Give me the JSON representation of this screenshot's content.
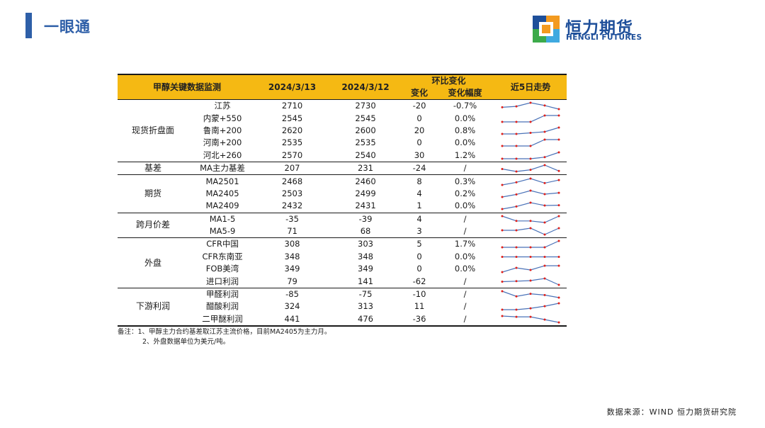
{
  "header": {
    "title": "一眼通"
  },
  "logo": {
    "name_cn": "恒力期货",
    "name_en": "HENGLI FUTURES",
    "colors": {
      "blue": "#1e4f9a",
      "orange": "#f39a1f",
      "green": "#3caa4a",
      "lightblue": "#3fa9e0"
    }
  },
  "table": {
    "columns": {
      "item": "甲醇关键数据监测",
      "date1": "2024/3/13",
      "date2": "2024/3/12",
      "change_group": "环比变化",
      "change": "变化",
      "change_pct": "变化幅度",
      "trend": "近5日走势"
    },
    "header_color": "#f5b913",
    "sparkline_color": "#4a72b8",
    "marker_color": "#e0211c",
    "groups": [
      {
        "category": "现货折盘面",
        "rows": [
          {
            "name": "江苏",
            "v1": "2710",
            "v2": "2730",
            "chg": "-20",
            "pct": "-0.7%",
            "trend": [
              2720,
              2725,
              2745,
              2730,
              2710
            ]
          },
          {
            "name": "内蒙+550",
            "v1": "2545",
            "v2": "2545",
            "chg": "0",
            "pct": "0.0%",
            "trend": [
              2535,
              2535,
              2535,
              2545,
              2545
            ]
          },
          {
            "name": "鲁南+200",
            "v1": "2620",
            "v2": "2600",
            "chg": "20",
            "pct": "0.8%",
            "trend": [
              2590,
              2590,
              2595,
              2600,
              2620
            ]
          },
          {
            "name": "河南+200",
            "v1": "2535",
            "v2": "2535",
            "chg": "0",
            "pct": "0.0%",
            "trend": [
              2530,
              2530,
              2530,
              2535,
              2535
            ]
          },
          {
            "name": "河北+260",
            "v1": "2570",
            "v2": "2540",
            "chg": "30",
            "pct": "1.2%",
            "trend": [
              2530,
              2530,
              2530,
              2540,
              2570
            ]
          }
        ]
      },
      {
        "category": "基差",
        "rows": [
          {
            "name": "MA主力基差",
            "v1": "207",
            "v2": "231",
            "chg": "-24",
            "pct": "/",
            "trend": [
              215,
              205,
              212,
              231,
              207
            ]
          }
        ]
      },
      {
        "category": "期货",
        "rows": [
          {
            "name": "MA2501",
            "v1": "2468",
            "v2": "2460",
            "chg": "8",
            "pct": "0.3%",
            "trend": [
              2455,
              2462,
              2472,
              2460,
              2468
            ]
          },
          {
            "name": "MA2405",
            "v1": "2503",
            "v2": "2499",
            "chg": "4",
            "pct": "0.2%",
            "trend": [
              2490,
              2498,
              2510,
              2499,
              2503
            ]
          },
          {
            "name": "MA2409",
            "v1": "2432",
            "v2": "2431",
            "chg": "1",
            "pct": "0.0%",
            "trend": [
              2420,
              2428,
              2440,
              2431,
              2432
            ]
          }
        ]
      },
      {
        "category": "跨月价差",
        "rows": [
          {
            "name": "MA1-5",
            "v1": "-35",
            "v2": "-39",
            "chg": "4",
            "pct": "/",
            "trend": [
              -35,
              -38,
              -38,
              -39,
              -35
            ]
          },
          {
            "name": "MA5-9",
            "v1": "71",
            "v2": "68",
            "chg": "3",
            "pct": "/",
            "trend": [
              70,
              70,
              71,
              68,
              71
            ]
          }
        ]
      },
      {
        "category": "外盘",
        "rows": [
          {
            "name": "CFR中国",
            "v1": "308",
            "v2": "303",
            "chg": "5",
            "pct": "1.7%",
            "trend": [
              303,
              303,
              303,
              303,
              308
            ]
          },
          {
            "name": "CFR东南亚",
            "v1": "348",
            "v2": "348",
            "chg": "0",
            "pct": "0.0%",
            "trend": [
              348,
              348,
              348,
              348,
              348
            ]
          },
          {
            "name": "FOB美湾",
            "v1": "349",
            "v2": "349",
            "chg": "0",
            "pct": "0.0%",
            "trend": [
              346,
              348,
              347,
              349,
              349
            ]
          },
          {
            "name": "进口利润",
            "v1": "79",
            "v2": "141",
            "chg": "-62",
            "pct": "/",
            "trend": [
              110,
              115,
              120,
              141,
              79
            ]
          }
        ]
      },
      {
        "category": "下游利润",
        "rows": [
          {
            "name": "甲醛利润",
            "v1": "-85",
            "v2": "-75",
            "chg": "-10",
            "pct": "/",
            "trend": [
              -60,
              -80,
              -70,
              -75,
              -85
            ]
          },
          {
            "name": "醋酸利润",
            "v1": "324",
            "v2": "313",
            "chg": "11",
            "pct": "/",
            "trend": [
              300,
              300,
              305,
              313,
              324
            ]
          },
          {
            "name": "二甲醚利润",
            "v1": "441",
            "v2": "476",
            "chg": "-36",
            "pct": "/",
            "trend": [
              520,
              510,
              510,
              476,
              441
            ]
          }
        ]
      }
    ]
  },
  "notes": [
    "备注：1、甲醇主力合约基差取江苏主流价格，目前MA2405为主力月。",
    "2、外盘数据单位为美元/吨。"
  ],
  "source": "数据来源：WIND 恒力期货研究院"
}
